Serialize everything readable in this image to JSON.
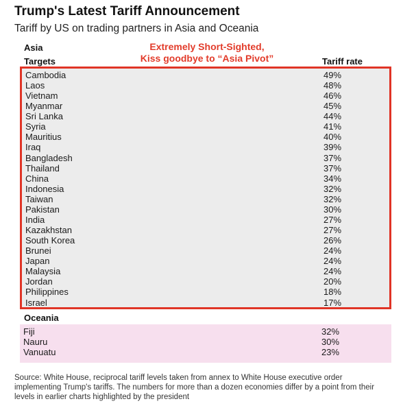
{
  "title": "Trump's Latest Tariff Announcement",
  "subtitle": "Tariff by US on trading partners in Asia and Oceania",
  "annotation": {
    "line1": "Extremely Short-Sighted,",
    "line2": "Kiss goodbye to “Asia Pivot”"
  },
  "source": "Source: White House, reciprocal tariff levels taken from annex to White House executive order implementing Trump's tariffs. The numbers for more than a dozen economies differ by a point from their levels in earlier charts highlighted by the president",
  "colors": {
    "highlight_border": "#e03426",
    "annotation_text": "#e23b2a",
    "asia_background": "#ececec",
    "oceania_background": "#f7dfee"
  },
  "chart_data": {
    "type": "table",
    "title": "Trump's Latest Tariff Announcement",
    "subtitle": "Tariff by US on trading partners in Asia and Oceania",
    "columns": {
      "target": "Targets",
      "rate": "Tariff rate"
    },
    "groups": [
      {
        "name": "Asia",
        "highlighted": true,
        "rows": [
          {
            "country": "Cambodia",
            "rate": "49%"
          },
          {
            "country": "Laos",
            "rate": "48%"
          },
          {
            "country": "Vietnam",
            "rate": "46%"
          },
          {
            "country": "Myanmar",
            "rate": "45%"
          },
          {
            "country": "Sri Lanka",
            "rate": "44%"
          },
          {
            "country": "Syria",
            "rate": "41%"
          },
          {
            "country": "Mauritius",
            "rate": "40%"
          },
          {
            "country": "Iraq",
            "rate": "39%"
          },
          {
            "country": "Bangladesh",
            "rate": "37%"
          },
          {
            "country": "Thailand",
            "rate": "37%"
          },
          {
            "country": "China",
            "rate": "34%"
          },
          {
            "country": "Indonesia",
            "rate": "32%"
          },
          {
            "country": "Taiwan",
            "rate": "32%"
          },
          {
            "country": "Pakistan",
            "rate": "30%"
          },
          {
            "country": "India",
            "rate": "27%"
          },
          {
            "country": "Kazakhstan",
            "rate": "27%"
          },
          {
            "country": "South Korea",
            "rate": "26%"
          },
          {
            "country": "Brunei",
            "rate": "24%"
          },
          {
            "country": "Japan",
            "rate": "24%"
          },
          {
            "country": "Malaysia",
            "rate": "24%"
          },
          {
            "country": "Jordan",
            "rate": "20%"
          },
          {
            "country": "Philippines",
            "rate": "18%"
          },
          {
            "country": "Israel",
            "rate": "17%"
          }
        ]
      },
      {
        "name": "Oceania",
        "highlighted": false,
        "rows": [
          {
            "country": "Fiji",
            "rate": "32%"
          },
          {
            "country": "Nauru",
            "rate": "30%"
          },
          {
            "country": "Vanuatu",
            "rate": "23%"
          }
        ]
      }
    ]
  }
}
